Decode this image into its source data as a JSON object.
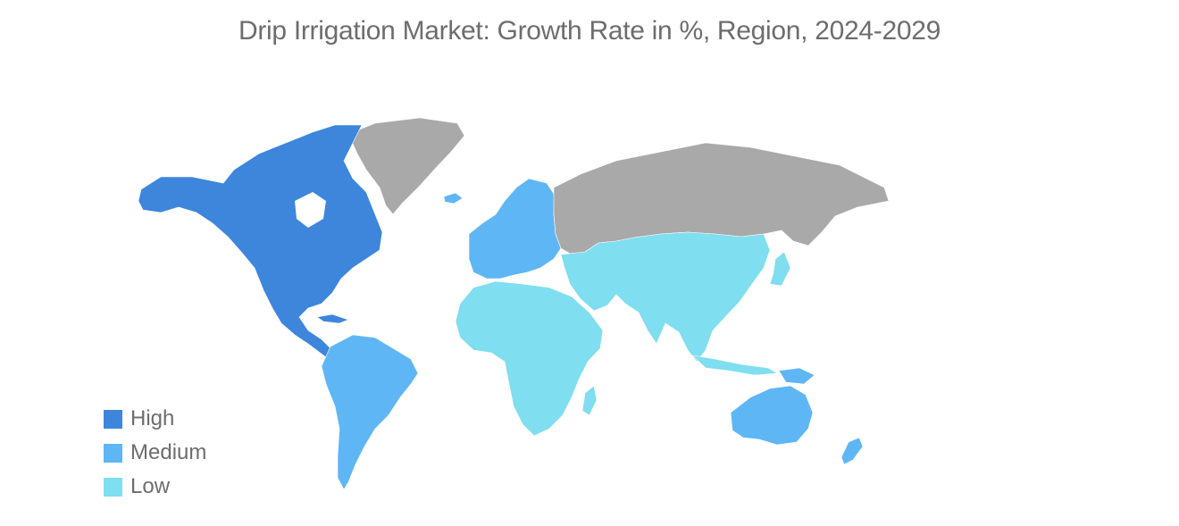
{
  "title": "Drip Irrigation Market: Growth Rate in %, Region, 2024-2029",
  "colors": {
    "high": "#3d86dc",
    "medium": "#5fb6f5",
    "low": "#7fdef0",
    "no_data": "#a9a9a9"
  },
  "legend": [
    {
      "label": "High",
      "color": "#3d86dc"
    },
    {
      "label": "Medium",
      "color": "#5fb6f5"
    },
    {
      "label": "Low",
      "color": "#7fdef0"
    }
  ],
  "regions": [
    {
      "name": "North America",
      "level": "high"
    },
    {
      "name": "South America",
      "level": "medium"
    },
    {
      "name": "Europe",
      "level": "medium"
    },
    {
      "name": "Australia",
      "level": "medium"
    },
    {
      "name": "Africa",
      "level": "low"
    },
    {
      "name": "Asia",
      "level": "low"
    },
    {
      "name": "Greenland",
      "level": "no_data"
    },
    {
      "name": "Russia",
      "level": "no_data"
    }
  ]
}
